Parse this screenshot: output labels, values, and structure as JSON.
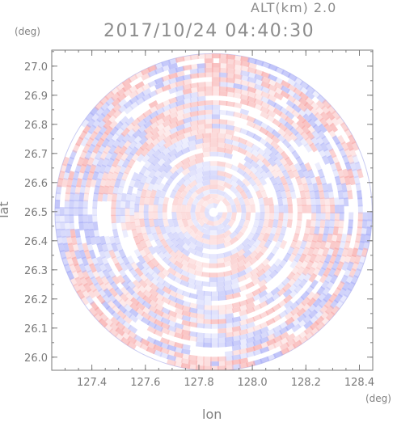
{
  "header": {
    "altitude": "ALT(km) 2.0",
    "timestamp": "2017/10/24 04:40:30"
  },
  "chart_data": {
    "type": "heatmap",
    "xlabel": "lon",
    "ylabel": "lat",
    "x_unit": "(deg)",
    "y_unit": "(deg)",
    "xlim": [
      127.25,
      128.45
    ],
    "ylim": [
      25.955,
      27.055
    ],
    "x_ticks": [
      127.4,
      127.6,
      127.8,
      128.0,
      128.2,
      128.4
    ],
    "x_tick_labels": [
      "127.4",
      "127.6",
      "127.8",
      "128.0",
      "128.2",
      "128.4"
    ],
    "y_ticks": [
      26.0,
      26.1,
      26.2,
      26.3,
      26.4,
      26.5,
      26.6,
      26.7,
      26.8,
      26.9,
      27.0
    ],
    "y_tick_labels": [
      "26.0",
      "26.1",
      "26.2",
      "26.3",
      "26.4",
      "26.5",
      "26.6",
      "26.7",
      "26.8",
      "26.9",
      "27.0"
    ],
    "radar_center": [
      127.855,
      26.498
    ],
    "radar_radius_lat": 0.545,
    "colors": {
      "positive": "#f7a6a6",
      "negative": "#a9aef7",
      "axis": "#7a7a7a"
    }
  }
}
